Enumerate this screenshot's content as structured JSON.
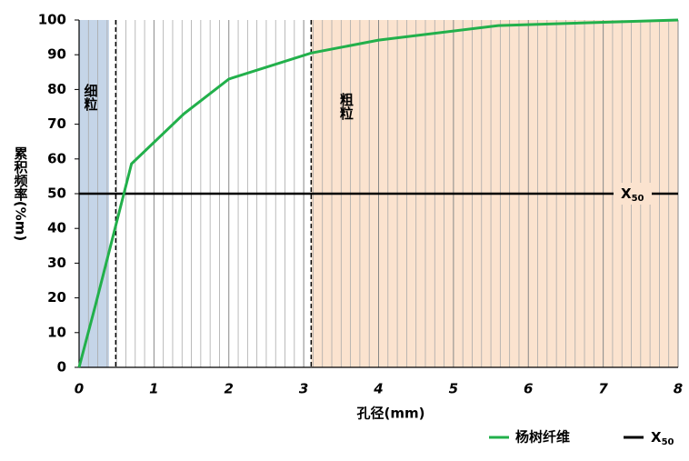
{
  "chart_data": {
    "type": "line",
    "ylabel": "累积频率(%m)",
    "xlabel": "孔径(mm)",
    "xlim": [
      0,
      8
    ],
    "xticks": [
      0,
      1,
      2,
      3,
      4,
      5,
      6,
      7,
      8
    ],
    "ylim": [
      0,
      100
    ],
    "yticks": [
      0,
      10,
      20,
      30,
      40,
      50,
      60,
      70,
      80,
      90,
      100
    ],
    "x_minor_divisions": 8,
    "series": [
      {
        "name": "杨树纤维",
        "color": "#22b04b",
        "x": [
          0,
          0.22,
          0.7,
          1.4,
          2.0,
          3.1,
          4.0,
          5.6,
          8
        ],
        "values": [
          0,
          18,
          58.6,
          73,
          83,
          90.5,
          94.2,
          98.4,
          100
        ]
      }
    ],
    "reference_line": {
      "name": "X",
      "subscript": "50",
      "value": 50,
      "color": "#000000"
    },
    "regions": [
      {
        "label": "细粒",
        "from": 0,
        "to": 0.4,
        "color": "#c5d5e8"
      },
      {
        "label": "粗粒",
        "from": 3.1,
        "to": 8,
        "color": "#fbe3cf"
      }
    ],
    "vlines": [
      0.49,
      3.1
    ]
  }
}
